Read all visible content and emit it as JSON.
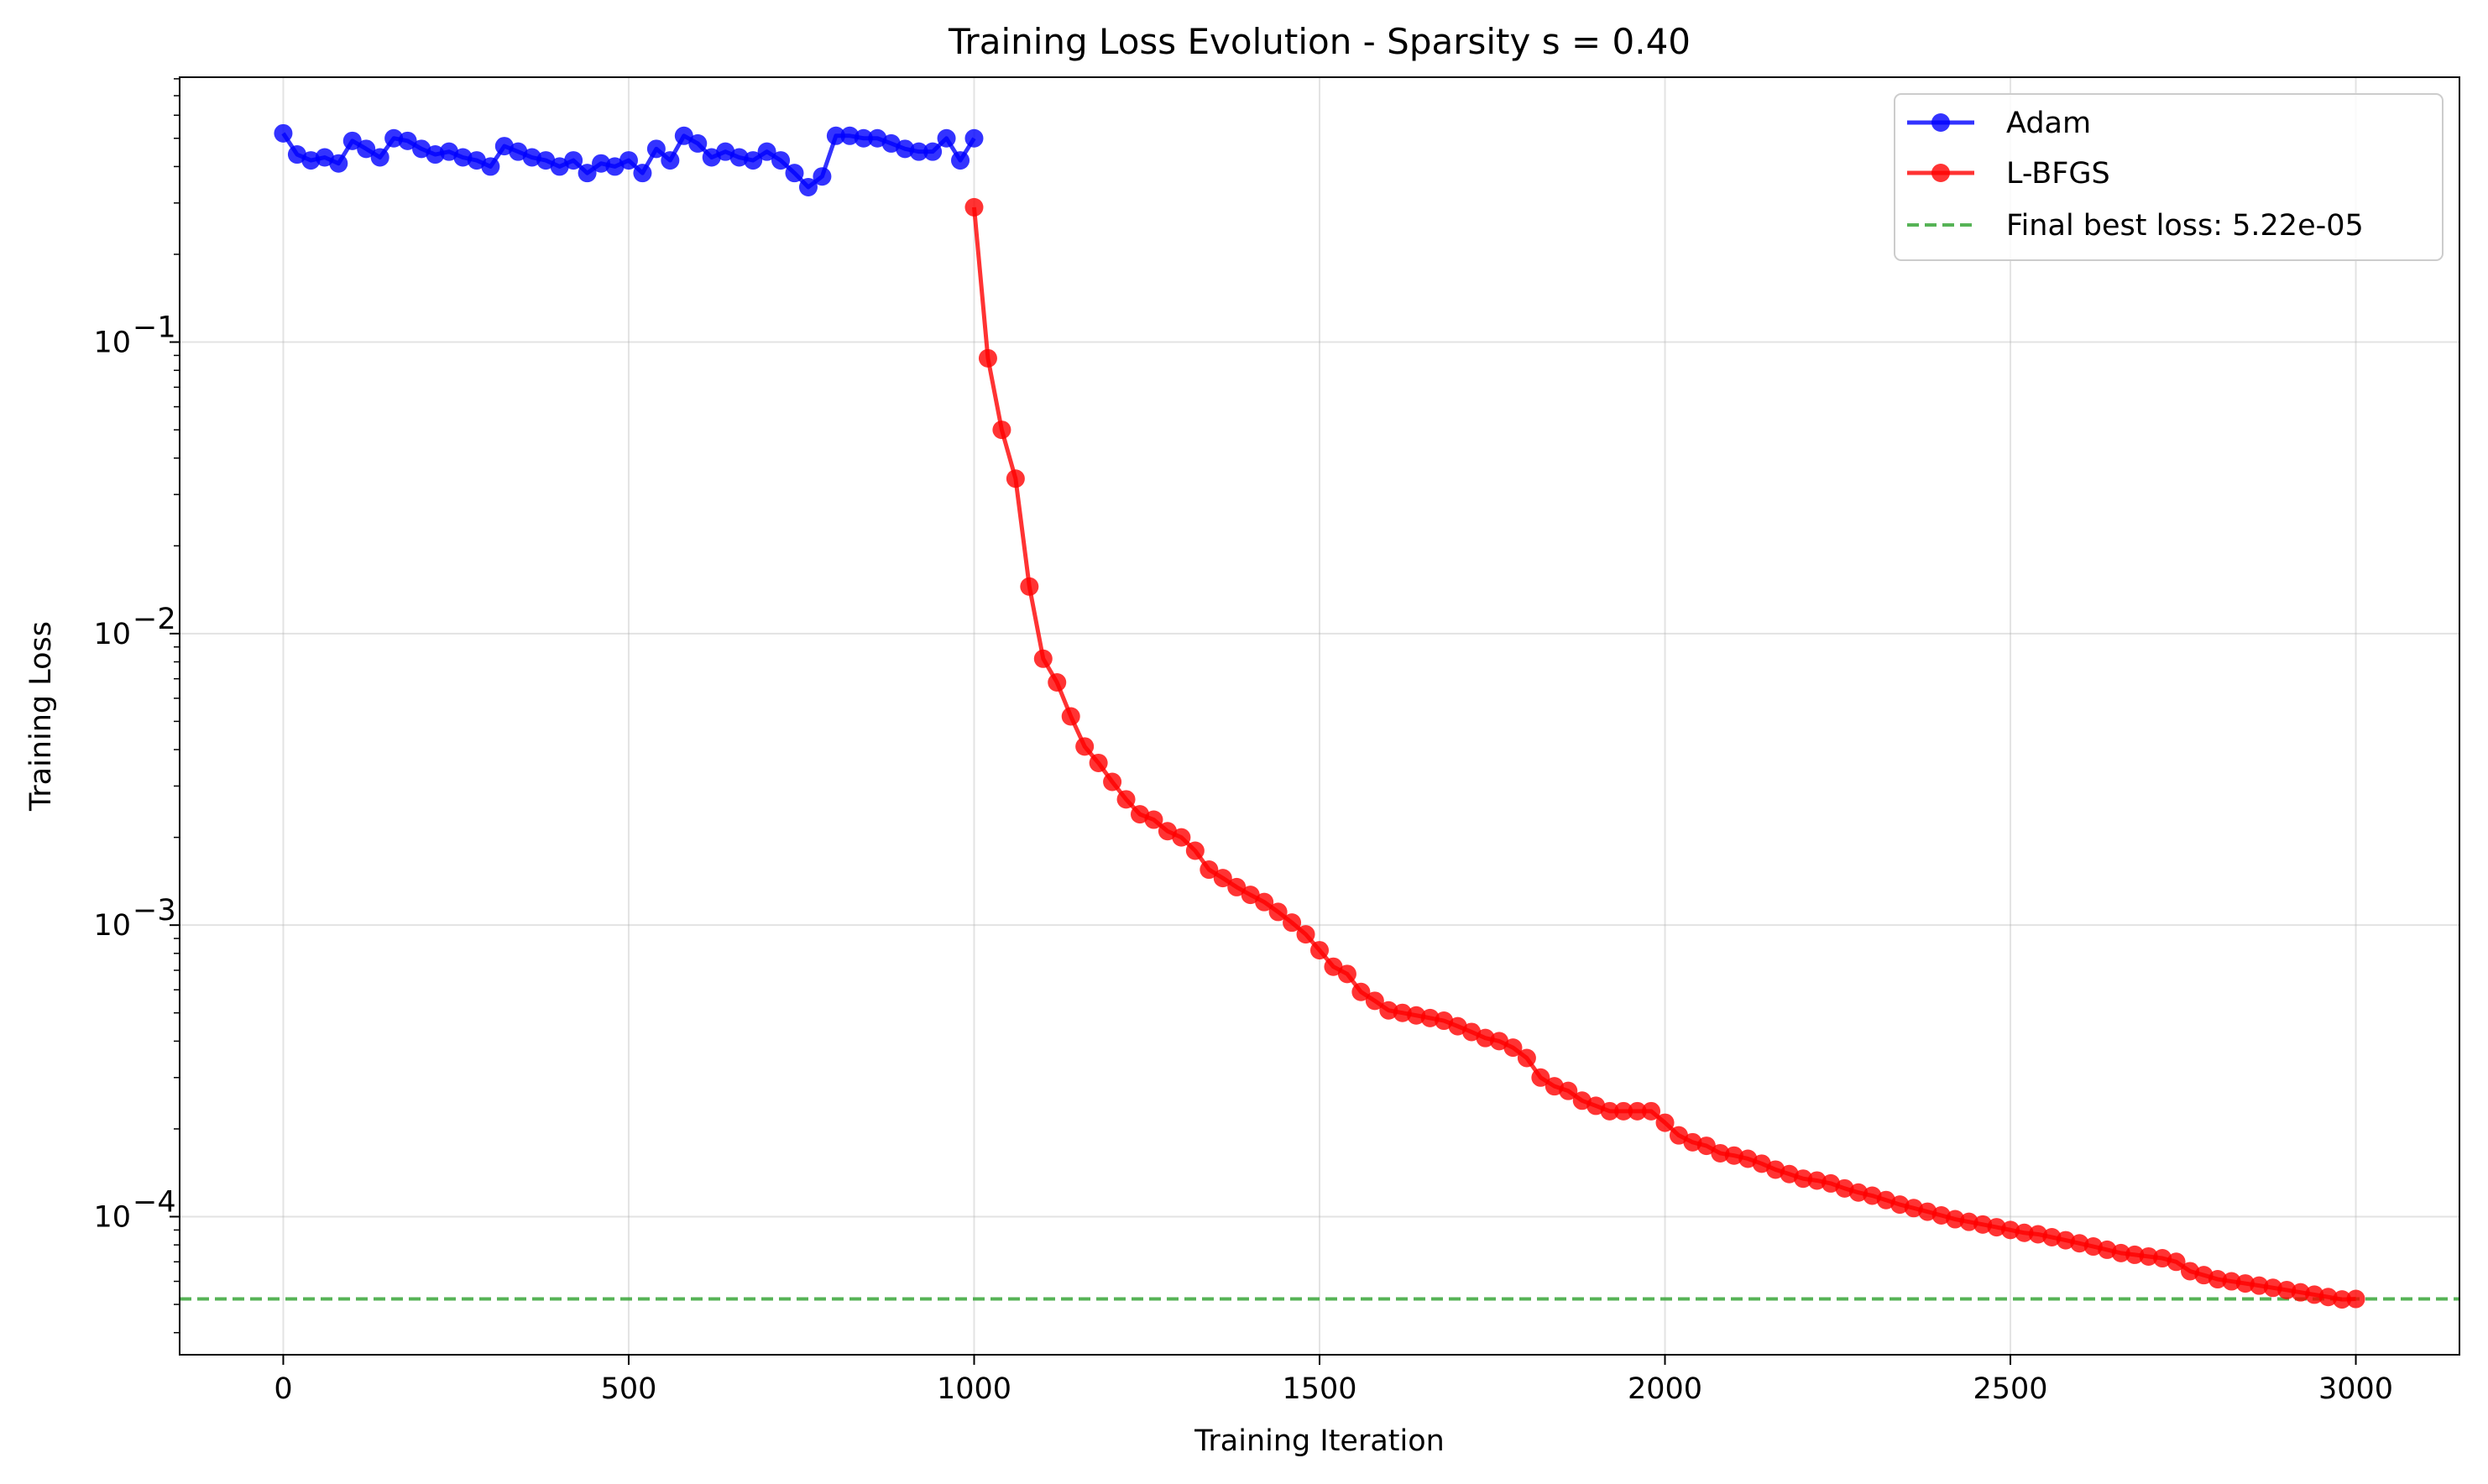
{
  "chart_data": {
    "type": "line",
    "title": "Training Loss Evolution - Sparsity s = 0.40",
    "xlabel": "Training Iteration",
    "ylabel": "Training Loss",
    "yscale": "log",
    "xlim": [
      -150,
      3150
    ],
    "ylim": [
      3.36e-05,
      0.81
    ],
    "x_ticks": [
      0,
      500,
      1000,
      1500,
      2000,
      2500,
      3000
    ],
    "y_ticks": [
      {
        "value": 0.1,
        "mantissa": "10",
        "exponent": "−1"
      },
      {
        "value": 0.01,
        "mantissa": "10",
        "exponent": "−2"
      },
      {
        "value": 0.001,
        "mantissa": "10",
        "exponent": "−3"
      },
      {
        "value": 0.0001,
        "mantissa": "10",
        "exponent": "−4"
      }
    ],
    "grid": true,
    "legend_position": "top-right",
    "colors": {
      "adam": "#0000ff",
      "lbfgs": "#ff0000",
      "best": "#2ca02c"
    },
    "series": [
      {
        "name": "Adam",
        "x": [
          0,
          20,
          40,
          60,
          80,
          100,
          120,
          140,
          160,
          180,
          200,
          220,
          240,
          260,
          280,
          300,
          320,
          340,
          360,
          380,
          400,
          420,
          440,
          460,
          480,
          500,
          520,
          540,
          560,
          580,
          600,
          620,
          640,
          660,
          680,
          700,
          720,
          740,
          760,
          780,
          800,
          820,
          840,
          860,
          880,
          900,
          920,
          940,
          960,
          980,
          1000
        ],
        "values": [
          0.52,
          0.44,
          0.42,
          0.43,
          0.41,
          0.49,
          0.46,
          0.43,
          0.5,
          0.49,
          0.46,
          0.44,
          0.45,
          0.43,
          0.42,
          0.4,
          0.47,
          0.45,
          0.43,
          0.42,
          0.4,
          0.42,
          0.38,
          0.41,
          0.4,
          0.42,
          0.38,
          0.46,
          0.42,
          0.51,
          0.48,
          0.43,
          0.45,
          0.43,
          0.42,
          0.45,
          0.42,
          0.38,
          0.34,
          0.37,
          0.51,
          0.51,
          0.5,
          0.5,
          0.48,
          0.46,
          0.45,
          0.45,
          0.5,
          0.42,
          0.5
        ]
      },
      {
        "name": "L-BFGS",
        "x": [
          1000,
          1020,
          1040,
          1060,
          1080,
          1100,
          1120,
          1140,
          1160,
          1180,
          1200,
          1220,
          1240,
          1260,
          1280,
          1300,
          1320,
          1340,
          1360,
          1380,
          1400,
          1420,
          1440,
          1460,
          1480,
          1500,
          1520,
          1540,
          1560,
          1580,
          1600,
          1620,
          1640,
          1660,
          1680,
          1700,
          1720,
          1740,
          1760,
          1780,
          1800,
          1820,
          1840,
          1860,
          1880,
          1900,
          1920,
          1940,
          1960,
          1980,
          2000,
          2020,
          2040,
          2060,
          2080,
          2100,
          2120,
          2140,
          2160,
          2180,
          2200,
          2220,
          2240,
          2260,
          2280,
          2300,
          2320,
          2340,
          2360,
          2380,
          2400,
          2420,
          2440,
          2460,
          2480,
          2500,
          2520,
          2540,
          2560,
          2580,
          2600,
          2620,
          2640,
          2660,
          2680,
          2700,
          2720,
          2740,
          2760,
          2780,
          2800,
          2820,
          2840,
          2860,
          2880,
          2900,
          2920,
          2940,
          2960,
          2980,
          3000
        ],
        "values": [
          0.29,
          0.088,
          0.05,
          0.034,
          0.0145,
          0.0082,
          0.0068,
          0.0052,
          0.0041,
          0.0036,
          0.0031,
          0.0027,
          0.0024,
          0.0023,
          0.0021,
          0.002,
          0.0018,
          0.00155,
          0.00145,
          0.00135,
          0.00127,
          0.0012,
          0.00111,
          0.00102,
          0.00093,
          0.00082,
          0.00072,
          0.00068,
          0.00059,
          0.00055,
          0.00051,
          0.0005,
          0.00049,
          0.00048,
          0.00047,
          0.00045,
          0.00043,
          0.00041,
          0.0004,
          0.00038,
          0.00035,
          0.0003,
          0.00028,
          0.00027,
          0.00025,
          0.00024,
          0.00023,
          0.00023,
          0.00023,
          0.00023,
          0.00021,
          0.00019,
          0.00018,
          0.000175,
          0.000165,
          0.000162,
          0.000158,
          0.000152,
          0.000145,
          0.00014,
          0.000135,
          0.000133,
          0.00013,
          0.000125,
          0.000121,
          0.000118,
          0.000114,
          0.00011,
          0.000107,
          0.000104,
          0.000101,
          9.8e-05,
          9.6e-05,
          9.4e-05,
          9.2e-05,
          9e-05,
          8.8e-05,
          8.7e-05,
          8.5e-05,
          8.3e-05,
          8.1e-05,
          7.9e-05,
          7.7e-05,
          7.5e-05,
          7.4e-05,
          7.3e-05,
          7.2e-05,
          7e-05,
          6.5e-05,
          6.3e-05,
          6.1e-05,
          6e-05,
          5.9e-05,
          5.8e-05,
          5.7e-05,
          5.6e-05,
          5.5e-05,
          5.4e-05,
          5.3e-05,
          5.2e-05,
          5.22e-05
        ]
      },
      {
        "name": "Final best loss: 5.22e-05",
        "type": "hline",
        "value": 5.22e-05
      }
    ]
  }
}
